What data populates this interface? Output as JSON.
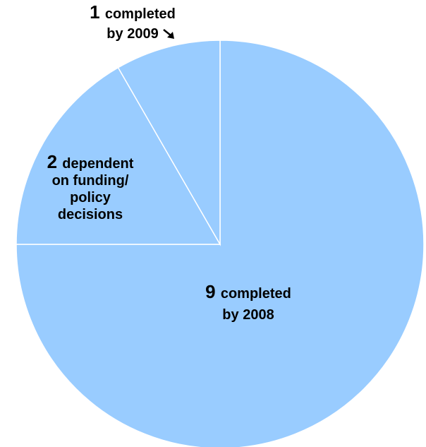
{
  "chart_data": {
    "type": "pie",
    "start": "top",
    "direction": "clockwise",
    "slices": [
      {
        "value": 9,
        "label_number": "9",
        "label_lines": [
          "completed",
          "by 2008"
        ]
      },
      {
        "value": 2,
        "label_number": "2",
        "label_lines": [
          "dependent",
          "on funding/",
          "policy",
          "decisions"
        ]
      },
      {
        "value": 1,
        "label_number": "1",
        "label_lines": [
          "completed",
          "by 2009"
        ],
        "callout": true
      }
    ],
    "colors": {
      "slice": "#99CCFF",
      "border": "#FFFFFF"
    }
  }
}
